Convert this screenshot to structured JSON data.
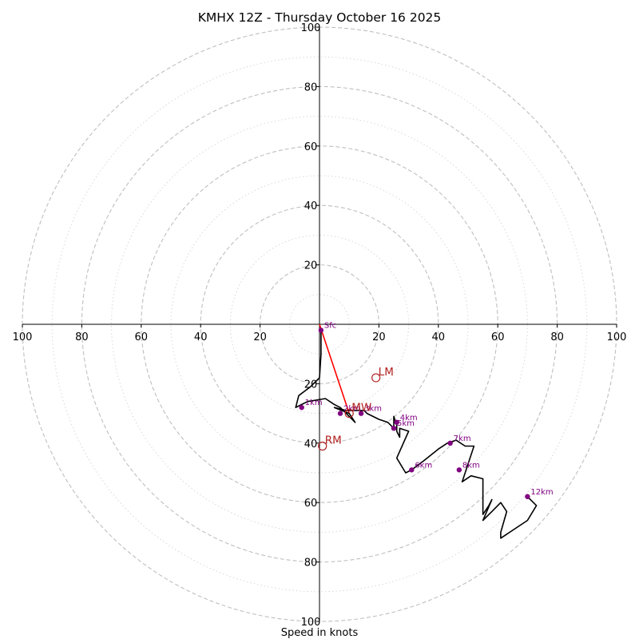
{
  "chart_data": {
    "type": "hodograph",
    "title": "KMHX 12Z - Thursday October 16 2025",
    "xlabel": "Speed in knots",
    "xlim": [
      -100,
      100
    ],
    "ylim": [
      -100,
      100
    ],
    "ring_major": [
      20,
      40,
      60,
      80,
      100
    ],
    "ring_minor": [
      10,
      30,
      50,
      70,
      90
    ],
    "x_ticks": [
      {
        "value": -100,
        "label": "100"
      },
      {
        "value": -80,
        "label": "80"
      },
      {
        "value": -60,
        "label": "60"
      },
      {
        "value": -40,
        "label": "40"
      },
      {
        "value": -20,
        "label": "20"
      },
      {
        "value": 20,
        "label": "20"
      },
      {
        "value": 40,
        "label": "40"
      },
      {
        "value": 60,
        "label": "60"
      },
      {
        "value": 80,
        "label": "80"
      },
      {
        "value": 100,
        "label": "100"
      }
    ],
    "y_ticks": [
      {
        "value": 100,
        "label": "100"
      },
      {
        "value": 80,
        "label": "80"
      },
      {
        "value": 60,
        "label": "60"
      },
      {
        "value": 40,
        "label": "40"
      },
      {
        "value": 20,
        "label": "20"
      },
      {
        "value": -20,
        "label": "20"
      },
      {
        "value": -40,
        "label": "40"
      },
      {
        "value": -60,
        "label": "60"
      },
      {
        "value": -80,
        "label": "80"
      },
      {
        "value": -100,
        "label": "100"
      }
    ],
    "trace": {
      "color": "#000000",
      "points": [
        [
          0.5,
          -2
        ],
        [
          0.5,
          -10
        ],
        [
          0,
          -18
        ],
        [
          -3,
          -21
        ],
        [
          -7,
          -24
        ],
        [
          -8,
          -28
        ],
        [
          -6,
          -27
        ],
        [
          -4,
          -26
        ],
        [
          2,
          -25
        ],
        [
          5,
          -27
        ],
        [
          7,
          -28
        ],
        [
          9,
          -30
        ],
        [
          12,
          -33
        ],
        [
          10,
          -30
        ],
        [
          5,
          -28
        ],
        [
          9,
          -29
        ],
        [
          15,
          -29
        ],
        [
          16,
          -30
        ],
        [
          20,
          -32
        ],
        [
          23,
          -33
        ],
        [
          25,
          -35
        ],
        [
          25,
          -31
        ],
        [
          26,
          -34
        ],
        [
          26,
          -36
        ],
        [
          27,
          -38
        ],
        [
          27,
          -35
        ],
        [
          30,
          -36
        ],
        [
          26,
          -45
        ],
        [
          29,
          -50
        ],
        [
          31,
          -49
        ],
        [
          35,
          -46
        ],
        [
          40,
          -42
        ],
        [
          43,
          -40
        ],
        [
          46,
          -39
        ],
        [
          49,
          -41
        ],
        [
          52,
          -41
        ],
        [
          48,
          -53
        ],
        [
          51,
          -51
        ],
        [
          55,
          -52
        ],
        [
          55,
          -58
        ],
        [
          55,
          -64
        ],
        [
          57,
          -61
        ],
        [
          58,
          -59
        ],
        [
          55,
          -66
        ],
        [
          58,
          -63
        ],
        [
          61,
          -60
        ],
        [
          63,
          -63
        ],
        [
          61,
          -70
        ],
        [
          61,
          -72
        ],
        [
          70,
          -66
        ],
        [
          73,
          -61
        ],
        [
          70,
          -58
        ]
      ]
    },
    "height_markers": [
      {
        "label": "Sfc",
        "u": 0.5,
        "v": -2
      },
      {
        "label": "1km",
        "u": -6,
        "v": -28
      },
      {
        "label": "2km",
        "u": 7,
        "v": -30
      },
      {
        "label": "3km",
        "u": 14,
        "v": -30
      },
      {
        "label": "4km",
        "u": 26,
        "v": -33
      },
      {
        "label": "5km",
        "u": 25,
        "v": -35
      },
      {
        "label": "6km",
        "u": 31,
        "v": -49
      },
      {
        "label": "7km",
        "u": 44,
        "v": -40
      },
      {
        "label": "8km",
        "u": 47,
        "v": -49
      },
      {
        "label": "12km",
        "u": 70,
        "v": -58
      }
    ],
    "storm_motions": [
      {
        "label": "LM",
        "u": 19,
        "v": -18
      },
      {
        "label": "MW",
        "u": 10,
        "v": -30
      },
      {
        "label": "RM",
        "u": 1,
        "v": -41
      }
    ],
    "shear_vector": {
      "from": [
        0,
        0
      ],
      "to": [
        10,
        -30
      ],
      "color": "#ff0000"
    },
    "colors": {
      "trace": "#000000",
      "marker": "#800080",
      "motion": "#b22222",
      "shear": "#ff0000",
      "ring_major": "#bfbfbf",
      "ring_minor": "#d8d8d8",
      "axis": "#000000"
    }
  }
}
